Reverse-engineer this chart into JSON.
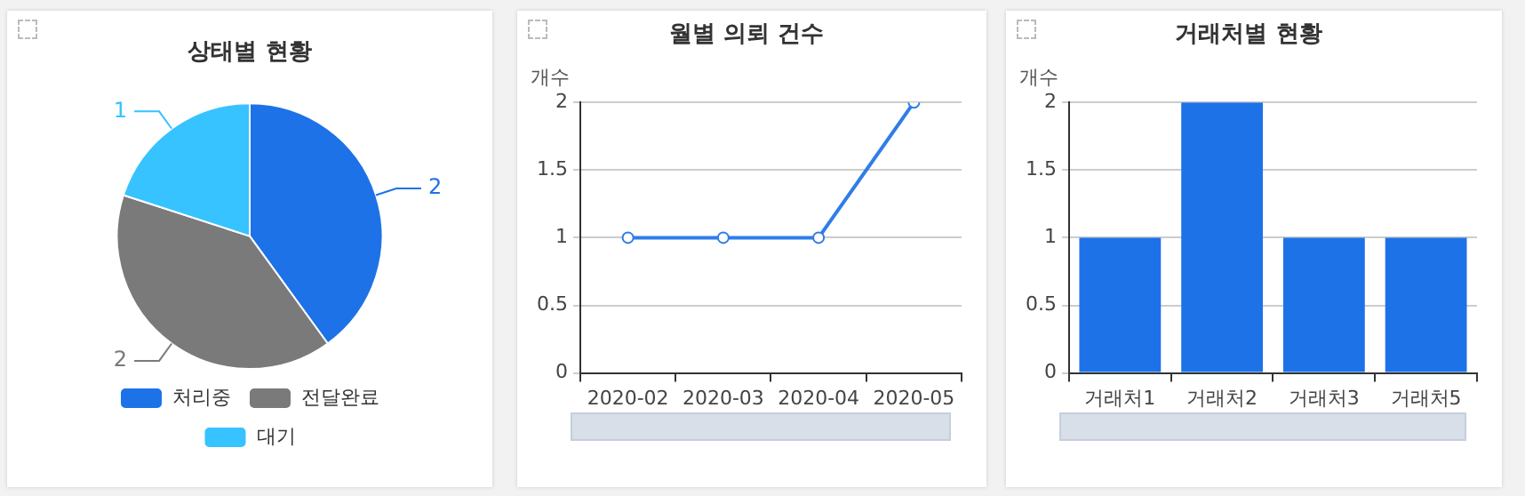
{
  "chart_data": [
    {
      "type": "pie",
      "title": "상태별 현황",
      "categories": [
        "처리중",
        "전달완료",
        "대기"
      ],
      "values": [
        2,
        2,
        1
      ],
      "colors": [
        "#1e72e8",
        "#7a7a7a",
        "#36c3ff"
      ],
      "data_labels": true,
      "legend": "bottom"
    },
    {
      "type": "line",
      "title": "월별 의뢰 건수",
      "ylabel": "개수",
      "categories": [
        "2020-02",
        "2020-03",
        "2020-04",
        "2020-05"
      ],
      "series": [
        {
          "color": "#2f7de8",
          "values": [
            1,
            1,
            1,
            2
          ]
        }
      ],
      "ylim": [
        0,
        2
      ],
      "yticks": [
        0,
        0.5,
        1,
        1.5,
        2
      ],
      "grid": "y",
      "marker": "circle",
      "line_style": "solid"
    },
    {
      "type": "bar",
      "title": "거래처별 현황",
      "ylabel": "개수",
      "categories": [
        "거래처1",
        "거래처2",
        "거래처3",
        "거래처5"
      ],
      "series": [
        {
          "color": "#1e72e8",
          "values": [
            1,
            2,
            1,
            1
          ]
        }
      ],
      "ylim": [
        0,
        2
      ],
      "yticks": [
        0,
        0.5,
        1,
        1.5,
        2
      ],
      "grid": "y"
    }
  ]
}
